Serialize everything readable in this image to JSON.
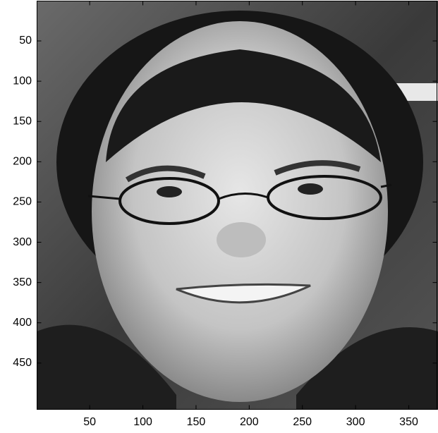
{
  "chart_data": {
    "type": "image",
    "xlim": [
      0.5,
      376.5
    ],
    "ylim": [
      507.5,
      0.5
    ],
    "xticks": [
      50,
      100,
      150,
      200,
      250,
      300,
      350
    ],
    "yticks": [
      50,
      100,
      150,
      200,
      250,
      300,
      350,
      400,
      450
    ]
  }
}
